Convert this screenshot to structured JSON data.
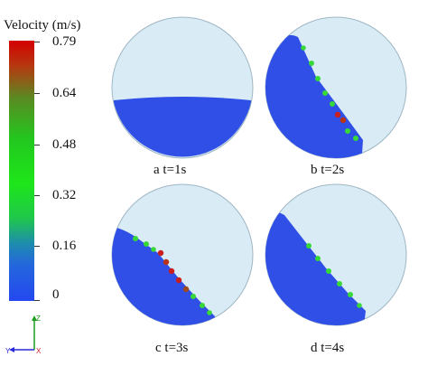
{
  "legend": {
    "title": "Velocity (m/s)",
    "ticks": [
      "0.79",
      "0.64",
      "0.48",
      "0.32",
      "0.16",
      "0"
    ]
  },
  "panels": [
    {
      "caption": "a t=1s"
    },
    {
      "caption": "b t=2s"
    },
    {
      "caption": "c t=3s"
    },
    {
      "caption": "d t=4s"
    }
  ],
  "axes": {
    "z": "Z",
    "y": "Y",
    "x": "X"
  },
  "colors": {
    "drum": "#d9ecf6",
    "particles": "#2f4fe6",
    "fast": "#c81e1e",
    "medium": "#38d838"
  }
}
